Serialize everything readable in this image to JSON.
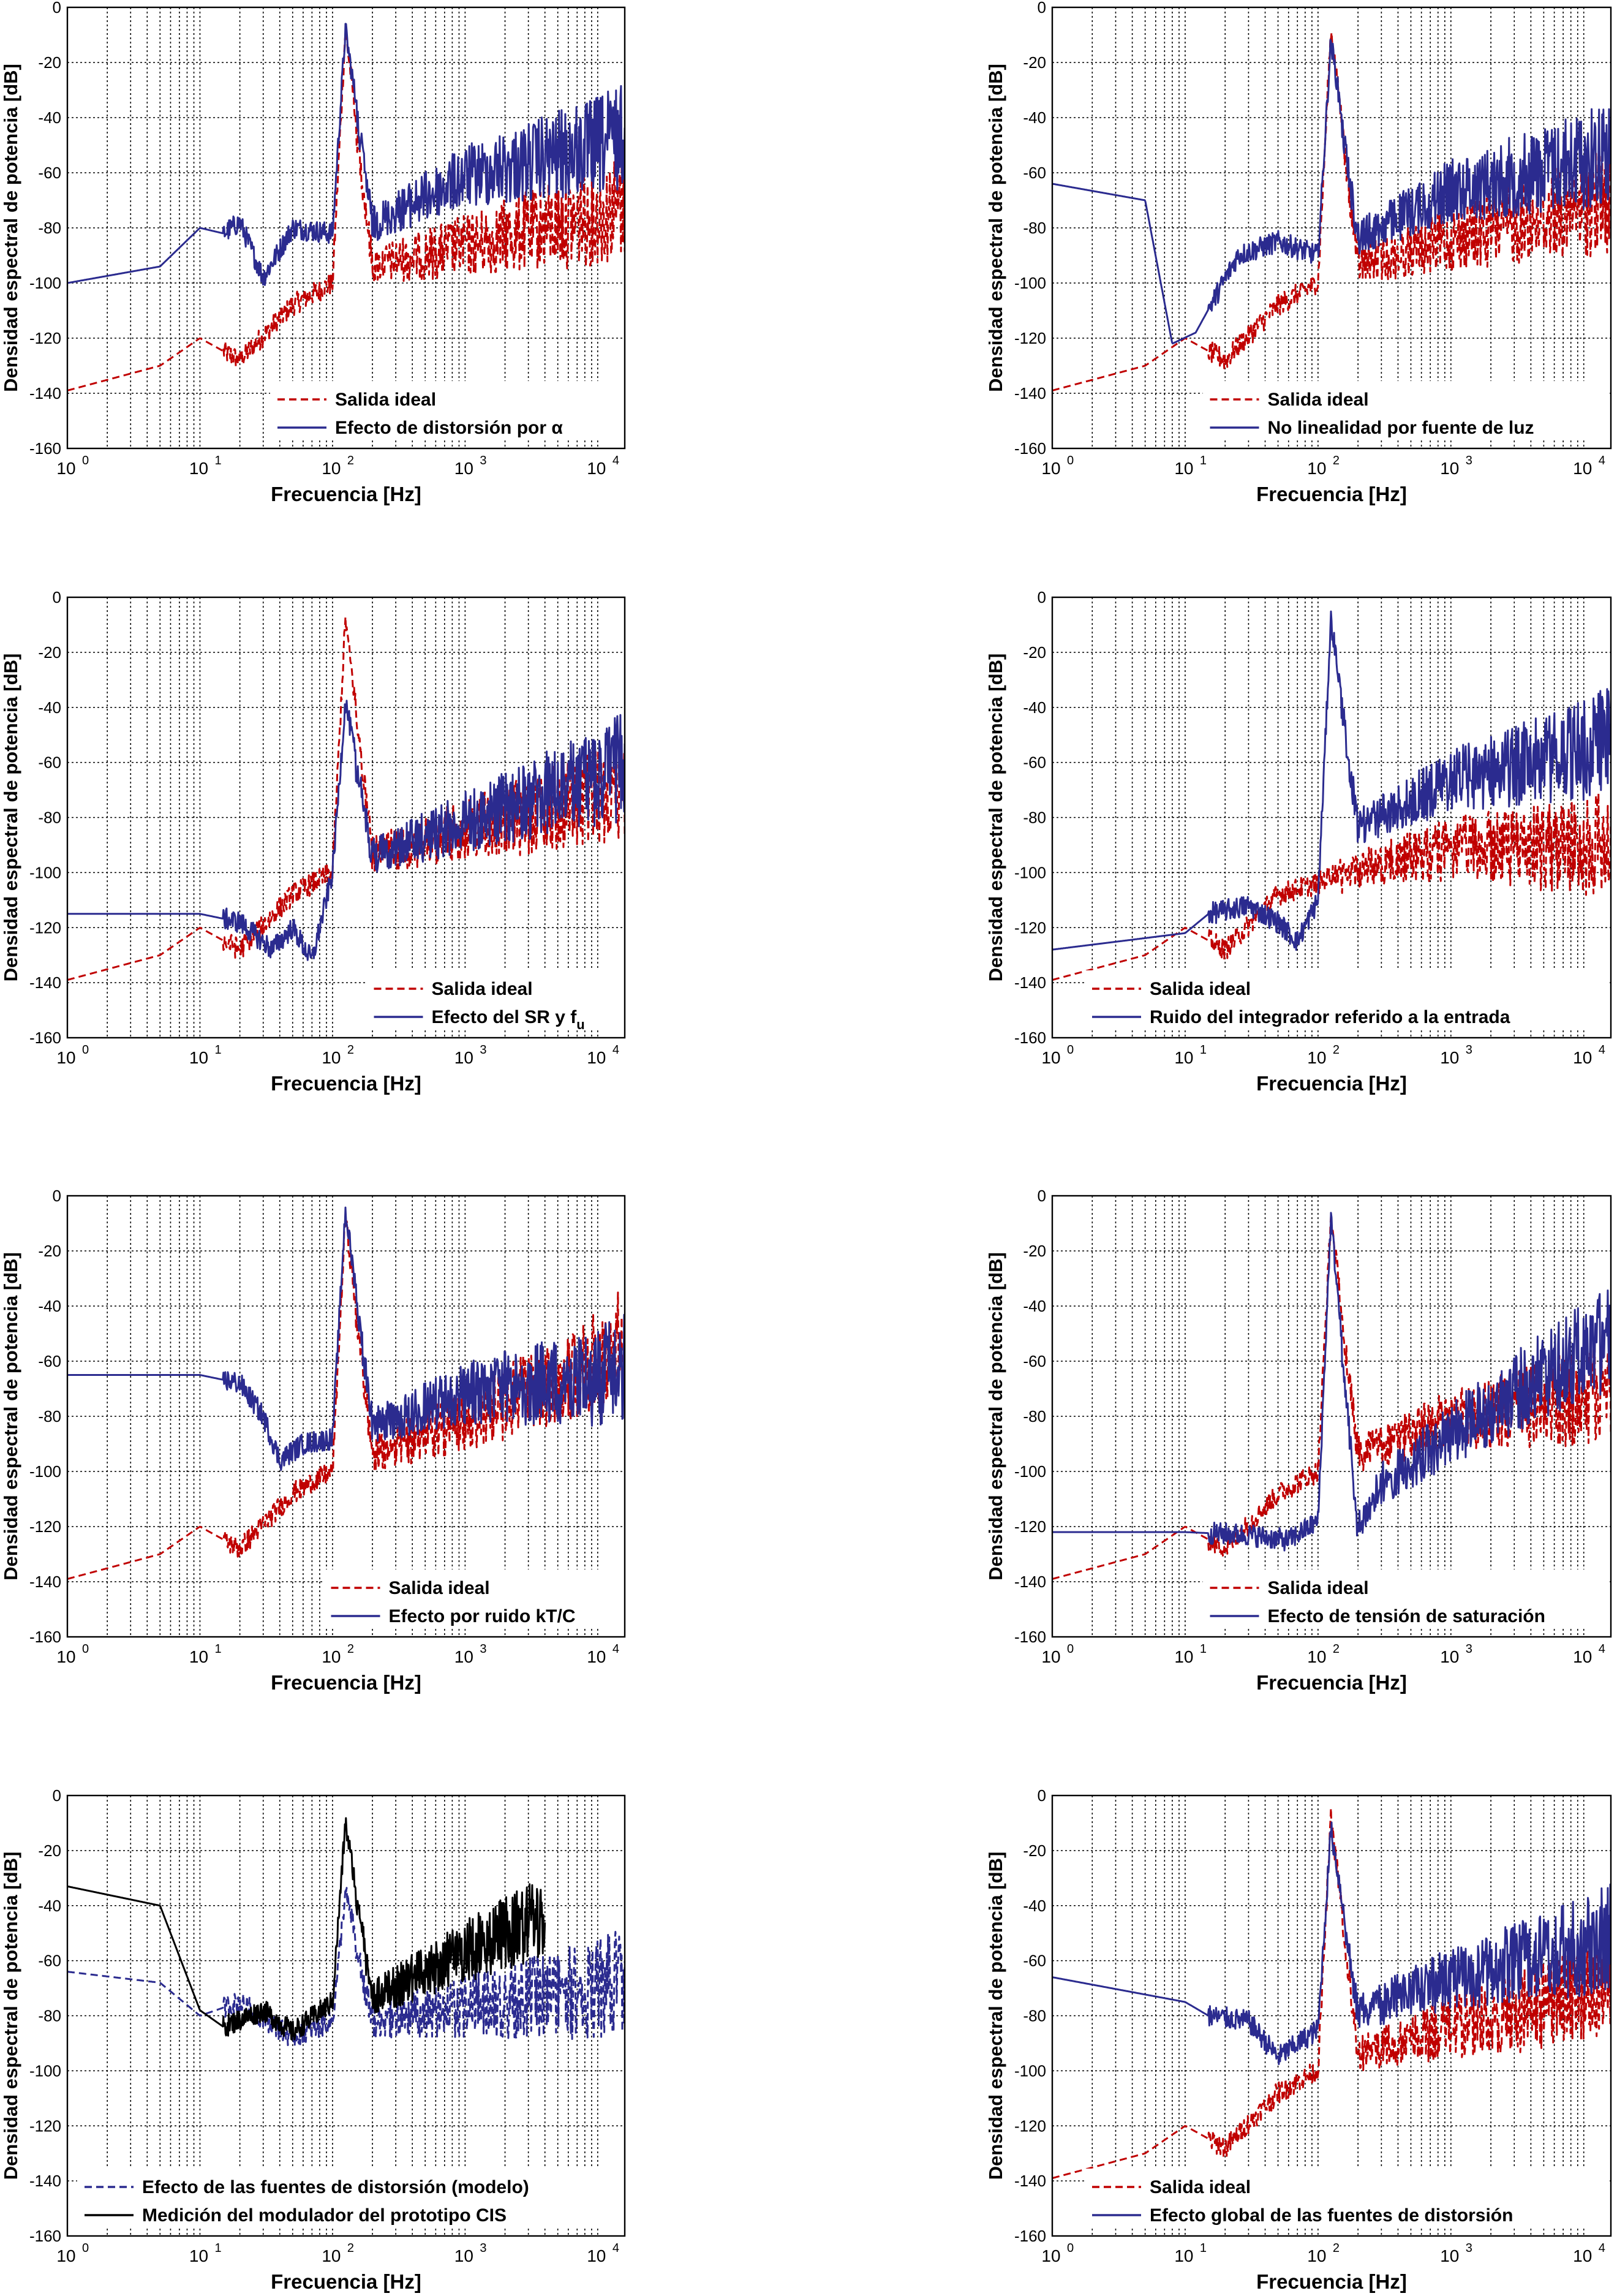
{
  "chart_data": [
    {
      "type": "line",
      "xlabel": "Frecuencia [Hz]",
      "ylabel": "Densidad espectral de potencia [dB]",
      "xscale": "log",
      "xlim": [
        1,
        16000
      ],
      "ylim": [
        -160,
        0
      ],
      "yticks": [
        0,
        -20,
        -40,
        -60,
        -80,
        -100,
        -120,
        -140,
        -160
      ],
      "xtick_labels": [
        "10",
        "10",
        "10",
        "10",
        "10"
      ],
      "xtick_exponents": [
        "0",
        "1",
        "2",
        "3",
        "4"
      ],
      "grid": true,
      "legend_position": "bottom-right",
      "series": [
        {
          "name": "Salida ideal",
          "color": "#c00000",
          "dashed": true,
          "x": [
            1,
            5,
            10,
            20,
            50,
            100,
            125,
            200,
            1000,
            10000,
            16000
          ],
          "y": [
            -139,
            -130,
            -120,
            -128,
            -108,
            -100,
            -8,
            -90,
            -80,
            -65,
            -60
          ]
        },
        {
          "name": "Efecto de distorsión por α",
          "color": "#2b2b8f",
          "dashed": false,
          "x": [
            1,
            5,
            10,
            15,
            20,
            30,
            50,
            100,
            125,
            200,
            1000,
            10000,
            16000
          ],
          "y": [
            -100,
            -94,
            -80,
            -82,
            -78,
            -98,
            -80,
            -82,
            -8,
            -75,
            -55,
            -40,
            -35
          ]
        }
      ]
    },
    {
      "type": "line",
      "xlabel": "Frecuencia [Hz]",
      "ylabel": "Densidad espectral de potencia [dB]",
      "xscale": "log",
      "xlim": [
        1,
        16000
      ],
      "ylim": [
        -160,
        0
      ],
      "yticks": [
        0,
        -20,
        -40,
        -60,
        -80,
        -100,
        -120,
        -140,
        -160
      ],
      "xtick_labels": [
        "10",
        "10",
        "10",
        "10",
        "10"
      ],
      "xtick_exponents": [
        "0",
        "1",
        "2",
        "3",
        "4"
      ],
      "grid": true,
      "legend_position": "bottom-right",
      "series": [
        {
          "name": "Salida ideal",
          "color": "#c00000",
          "dashed": true,
          "x": [
            1,
            5,
            10,
            20,
            50,
            100,
            125,
            200,
            1000,
            10000,
            16000
          ],
          "y": [
            -139,
            -130,
            -120,
            -128,
            -108,
            -100,
            -8,
            -90,
            -78,
            -62,
            -58
          ]
        },
        {
          "name": "No linealidad por fuente de luz",
          "color": "#2b2b8f",
          "dashed": false,
          "x": [
            1,
            5,
            8,
            12,
            25,
            50,
            100,
            125,
            200,
            1000,
            10000,
            16000
          ],
          "y": [
            -64,
            -70,
            -122,
            -118,
            -90,
            -85,
            -90,
            -12,
            -80,
            -60,
            -45,
            -40
          ]
        }
      ]
    },
    {
      "type": "line",
      "xlabel": "Frecuencia [Hz]",
      "ylabel": "Densidad espectral de potencia [dB]",
      "xscale": "log",
      "xlim": [
        1,
        16000
      ],
      "ylim": [
        -160,
        0
      ],
      "yticks": [
        0,
        -20,
        -40,
        -60,
        -80,
        -100,
        -120,
        -140,
        -160
      ],
      "xtick_labels": [
        "10",
        "10",
        "10",
        "10",
        "10"
      ],
      "xtick_exponents": [
        "0",
        "1",
        "2",
        "3",
        "4"
      ],
      "grid": true,
      "legend_position": "bottom-right",
      "series": [
        {
          "name": "Salida ideal",
          "color": "#c00000",
          "dashed": true,
          "x": [
            1,
            5,
            10,
            20,
            50,
            100,
            125,
            200,
            1000,
            10000,
            16000
          ],
          "y": [
            -139,
            -130,
            -120,
            -128,
            -108,
            -100,
            -8,
            -90,
            -78,
            -62,
            -58
          ]
        },
        {
          "name": "Efecto del SR y f",
          "name_subscript": "u",
          "color": "#2b2b8f",
          "dashed": false,
          "x": [
            1,
            10,
            20,
            35,
            50,
            70,
            100,
            125,
            200,
            1000,
            10000,
            16000
          ],
          "y": [
            -115,
            -115,
            -118,
            -128,
            -120,
            -132,
            -100,
            -38,
            -90,
            -75,
            -55,
            -50
          ]
        }
      ]
    },
    {
      "type": "line",
      "xlabel": "Frecuencia [Hz]",
      "ylabel": "Densidad espectral de potencia [dB]",
      "xscale": "log",
      "xlim": [
        1,
        16000
      ],
      "ylim": [
        -160,
        0
      ],
      "yticks": [
        0,
        -20,
        -40,
        -60,
        -80,
        -100,
        -120,
        -140,
        -160
      ],
      "xtick_labels": [
        "10",
        "10",
        "10",
        "10",
        "10"
      ],
      "xtick_exponents": [
        "0",
        "1",
        "2",
        "3",
        "4"
      ],
      "grid": true,
      "legend_position": "bottom-right",
      "series": [
        {
          "name": "Salida ideal",
          "color": "#c00000",
          "dashed": true,
          "x": [
            1,
            5,
            10,
            20,
            50,
            100,
            200,
            1000,
            10000,
            16000
          ],
          "y": [
            -139,
            -130,
            -120,
            -128,
            -108,
            -104,
            -95,
            -85,
            -80,
            -78
          ]
        },
        {
          "name": "Ruido del integrador referido a la entrada",
          "color": "#2b2b8f",
          "dashed": false,
          "x": [
            1,
            10,
            15,
            30,
            50,
            70,
            100,
            125,
            200,
            1000,
            10000,
            16000
          ],
          "y": [
            -128,
            -122,
            -115,
            -112,
            -118,
            -125,
            -110,
            -8,
            -80,
            -60,
            -45,
            -40
          ]
        }
      ]
    },
    {
      "type": "line",
      "xlabel": "Frecuencia [Hz]",
      "ylabel": "Densidad espectral de potencia [dB]",
      "xscale": "log",
      "xlim": [
        1,
        16000
      ],
      "ylim": [
        -160,
        0
      ],
      "yticks": [
        0,
        -20,
        -40,
        -60,
        -80,
        -100,
        -120,
        -140,
        -160
      ],
      "xtick_labels": [
        "10",
        "10",
        "10",
        "10",
        "10"
      ],
      "xtick_exponents": [
        "0",
        "1",
        "2",
        "3",
        "4"
      ],
      "grid": true,
      "legend_position": "bottom-right",
      "series": [
        {
          "name": "Salida ideal",
          "color": "#c00000",
          "dashed": true,
          "x": [
            1,
            5,
            10,
            20,
            50,
            100,
            125,
            200,
            1000,
            10000,
            16000
          ],
          "y": [
            -139,
            -130,
            -120,
            -128,
            -108,
            -100,
            -8,
            -90,
            -75,
            -50,
            -40
          ]
        },
        {
          "name": "Efecto por ruido kT/C",
          "color": "#2b2b8f",
          "dashed": false,
          "x": [
            1,
            10,
            20,
            30,
            40,
            60,
            100,
            125,
            200,
            1000,
            10000,
            16000
          ],
          "y": [
            -65,
            -65,
            -68,
            -80,
            -96,
            -90,
            -88,
            -5,
            -80,
            -65,
            -55,
            -50
          ]
        }
      ]
    },
    {
      "type": "line",
      "xlabel": "Frecuencia [Hz]",
      "ylabel": "Densidad espectral de potencia [dB]",
      "xscale": "log",
      "xlim": [
        1,
        16000
      ],
      "ylim": [
        -160,
        0
      ],
      "yticks": [
        0,
        -20,
        -40,
        -60,
        -80,
        -100,
        -120,
        -140,
        -160
      ],
      "xtick_labels": [
        "10",
        "10",
        "10",
        "10",
        "10"
      ],
      "xtick_exponents": [
        "0",
        "1",
        "2",
        "3",
        "4"
      ],
      "grid": true,
      "legend_position": "bottom-right",
      "series": [
        {
          "name": "Salida ideal",
          "color": "#c00000",
          "dashed": true,
          "x": [
            1,
            5,
            10,
            20,
            50,
            100,
            125,
            200,
            1000,
            10000,
            16000
          ],
          "y": [
            -139,
            -130,
            -120,
            -128,
            -108,
            -100,
            -8,
            -90,
            -75,
            -62,
            -58
          ]
        },
        {
          "name": "Efecto de tensión de saturación",
          "color": "#2b2b8f",
          "dashed": false,
          "x": [
            1,
            10,
            30,
            60,
            100,
            125,
            200,
            300,
            1000,
            10000,
            16000
          ],
          "y": [
            -122,
            -122,
            -123,
            -125,
            -118,
            -8,
            -118,
            -100,
            -80,
            -45,
            -40
          ]
        }
      ]
    },
    {
      "type": "line",
      "xlabel": "Frecuencia [Hz]",
      "ylabel": "Densidad espectral de potencia [dB]",
      "xscale": "log",
      "xlim": [
        1,
        16000
      ],
      "ylim": [
        -160,
        0
      ],
      "yticks": [
        0,
        -20,
        -40,
        -60,
        -80,
        -100,
        -120,
        -140,
        -160
      ],
      "xtick_labels": [
        "10",
        "10",
        "10",
        "10",
        "10"
      ],
      "xtick_exponents": [
        "0",
        "1",
        "2",
        "3",
        "4"
      ],
      "grid": true,
      "legend_position": "bottom-right",
      "series": [
        {
          "name": "Efecto de las fuentes de distorsión (modelo)",
          "color": "#2b2b8f",
          "dashed": true,
          "x": [
            1,
            5,
            10,
            20,
            50,
            100,
            125,
            200,
            1000,
            10000,
            16000
          ],
          "y": [
            -64,
            -68,
            -80,
            -75,
            -88,
            -82,
            -35,
            -78,
            -70,
            -60,
            -55
          ]
        },
        {
          "name": "Medición del modulador del prototipo CIS",
          "color": "#000000",
          "dashed": false,
          "x": [
            1,
            5,
            10,
            15,
            30,
            50,
            100,
            125,
            200,
            1000,
            4000
          ],
          "y": [
            -33,
            -40,
            -78,
            -84,
            -78,
            -86,
            -75,
            -10,
            -70,
            -50,
            -35
          ]
        }
      ]
    },
    {
      "type": "line",
      "xlabel": "Frecuencia [Hz]",
      "ylabel": "Densidad espectral de potencia [dB]",
      "xscale": "log",
      "xlim": [
        1,
        16000
      ],
      "ylim": [
        -160,
        0
      ],
      "yticks": [
        0,
        -20,
        -40,
        -60,
        -80,
        -100,
        -120,
        -140,
        -160
      ],
      "xtick_labels": [
        "10",
        "10",
        "10",
        "10",
        "10"
      ],
      "xtick_exponents": [
        "0",
        "1",
        "2",
        "3",
        "4"
      ],
      "grid": true,
      "legend_position": "bottom-right",
      "series": [
        {
          "name": "Salida ideal",
          "color": "#c00000",
          "dashed": true,
          "x": [
            1,
            5,
            10,
            20,
            50,
            100,
            125,
            200,
            1000,
            10000,
            16000
          ],
          "y": [
            -139,
            -130,
            -120,
            -128,
            -108,
            -100,
            -8,
            -90,
            -78,
            -62,
            -58
          ]
        },
        {
          "name": "Efecto global de las fuentes de distorsión",
          "color": "#2b2b8f",
          "dashed": false,
          "x": [
            1,
            10,
            15,
            30,
            50,
            100,
            125,
            200,
            1000,
            10000,
            16000
          ],
          "y": [
            -66,
            -75,
            -80,
            -82,
            -95,
            -85,
            -12,
            -75,
            -60,
            -45,
            -40
          ]
        }
      ]
    }
  ]
}
